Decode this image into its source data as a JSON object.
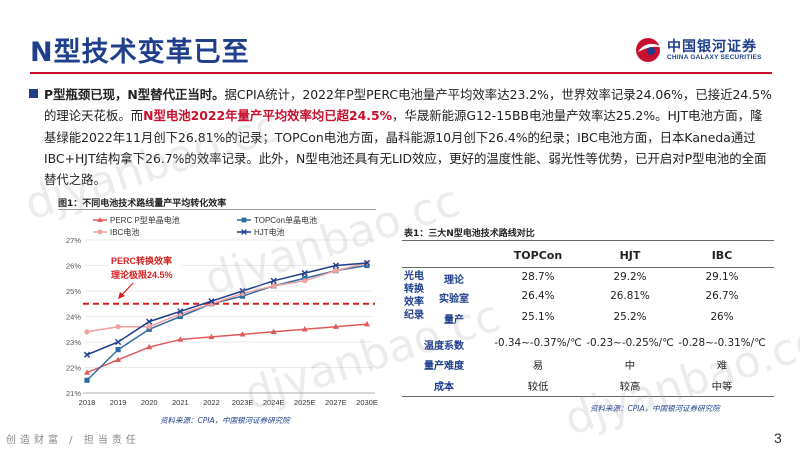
{
  "title": "N型技术变革已至",
  "logo": {
    "cn": "中国银河证券",
    "en": "CHINA GALAXY SECURITIES"
  },
  "paragraph": {
    "bold_lead": "P型瓶颈已现，N型替代正当时。",
    "t1": "据CPIA统计，2022年P型PERC电池量产平均效率达23.2%，世界效率记录24.06%，已接近24.5%的理论天花板。而",
    "red": "N型电池2022年量产平均效率均已超24.5%",
    "t2": "，华晟新能源G12-15BB电池量产效率达25.2%。HJT电池方面，隆基绿能2022年11月创下26.81%的记录；TOPCon电池方面，晶科能源10月创下26.4%的纪录；IBC电池方面，日本Kaneda通过IBC+HJT结构拿下26.7%的效率记录。此外，N型电池还具有无LID效应，更好的温度性能、弱光性等优势，已开启对P型电池的全面替代之路。"
  },
  "figure": {
    "title": "图1：不同电池技术路线量产平均转化效率",
    "source": "资料来源：CPIA，中国银河证券研究院"
  },
  "chart_data": {
    "type": "line",
    "categories": [
      "2018",
      "2019",
      "2020",
      "2021",
      "2022",
      "2023E",
      "2024E",
      "2025E",
      "2027E",
      "2030E"
    ],
    "ylim": [
      21,
      27
    ],
    "yticks": [
      "21%",
      "22%",
      "23%",
      "24%",
      "25%",
      "26%",
      "27%"
    ],
    "series": [
      {
        "name": "PERC P型单晶电池",
        "color": "#e05a5a",
        "values": [
          21.8,
          22.3,
          22.8,
          23.1,
          23.2,
          23.3,
          23.4,
          23.5,
          23.6,
          23.7
        ]
      },
      {
        "name": "TOPCon单晶电池",
        "color": "#2e6da4",
        "values": [
          21.5,
          22.7,
          23.5,
          24.0,
          24.5,
          24.8,
          25.2,
          25.5,
          25.8,
          26.0
        ]
      },
      {
        "name": "IBC电池",
        "color": "#f2a0a0",
        "values": [
          23.4,
          23.6,
          23.6,
          24.1,
          24.5,
          24.9,
          25.2,
          25.4,
          25.8,
          26.1
        ]
      },
      {
        "name": "HJT电池",
        "color": "#1f3f8c",
        "values": [
          22.5,
          23.0,
          23.8,
          24.2,
          24.6,
          25.0,
          25.4,
          25.7,
          26.0,
          26.1
        ]
      }
    ],
    "reference_line": {
      "value": 24.5,
      "label_line1": "PERC转换效率",
      "label_line2": "理论极限24.5%",
      "color": "#d62020"
    }
  },
  "table": {
    "title": "表1：三大N型电池技术路线对比",
    "headers": [
      "TOPCon",
      "HJT",
      "IBC"
    ],
    "group_label": "光电转换效率纪录",
    "rows": [
      {
        "label": "理论",
        "values": [
          "28.7%",
          "29.2%",
          "29.1%"
        ]
      },
      {
        "label": "实验室",
        "values": [
          "26.4%",
          "26.81%",
          "26.7%"
        ]
      },
      {
        "label": "量产",
        "values": [
          "25.1%",
          "25.2%",
          "26%"
        ]
      },
      {
        "label": "温度系数",
        "values": [
          "-0.34~-0.37%/℃",
          "-0.23~-0.25%/℃",
          "-0.28~-0.31%/℃"
        ]
      },
      {
        "label": "量产难度",
        "values": [
          "易",
          "中",
          "难"
        ]
      },
      {
        "label": "成本",
        "values": [
          "较低",
          "较高",
          "中等"
        ]
      }
    ],
    "source": "资料来源：CPIA，中国银河证券研究院"
  },
  "footer": {
    "slogan": "创造财富 / 担当责任",
    "page": "3"
  },
  "watermark": "djyanbao.cc"
}
